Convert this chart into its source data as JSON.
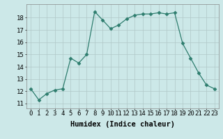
{
  "x": [
    0,
    1,
    2,
    3,
    4,
    5,
    6,
    7,
    8,
    9,
    10,
    11,
    12,
    13,
    14,
    15,
    16,
    17,
    18,
    19,
    20,
    21,
    22,
    23
  ],
  "y": [
    12.2,
    11.3,
    11.8,
    12.1,
    12.2,
    14.7,
    14.3,
    15.0,
    18.5,
    17.8,
    17.1,
    17.4,
    17.9,
    18.2,
    18.3,
    18.3,
    18.4,
    18.3,
    18.4,
    15.9,
    14.7,
    13.5,
    12.5,
    12.2
  ],
  "x_ticks": [
    0,
    1,
    2,
    3,
    4,
    5,
    6,
    7,
    8,
    9,
    10,
    11,
    12,
    13,
    14,
    15,
    16,
    17,
    18,
    19,
    20,
    21,
    22,
    23
  ],
  "x_tick_labels": [
    "0",
    "1",
    "2",
    "3",
    "4",
    "5",
    "6",
    "7",
    "8",
    "9",
    "10",
    "11",
    "12",
    "13",
    "14",
    "15",
    "16",
    "17",
    "18",
    "19",
    "20",
    "21",
    "22",
    "23"
  ],
  "y_ticks": [
    11,
    12,
    13,
    14,
    15,
    16,
    17,
    18
  ],
  "ylim": [
    10.6,
    19.1
  ],
  "xlim": [
    -0.5,
    23.5
  ],
  "xlabel": "Humidex (Indice chaleur)",
  "line_color": "#2e7d6e",
  "marker": "D",
  "marker_size": 2.5,
  "bg_color": "#cce8e8",
  "grid_color": "#b0c8c8",
  "xlabel_fontsize": 7.5,
  "tick_fontsize": 6.5
}
